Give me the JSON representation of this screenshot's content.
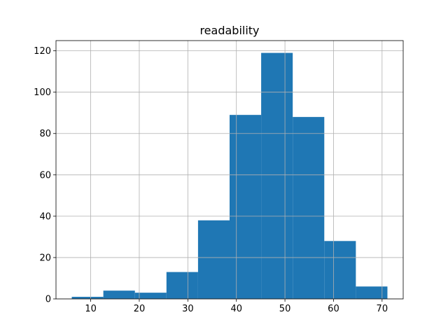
{
  "chart_data": {
    "type": "histogram",
    "title": "readability",
    "bins": [
      6.1,
      12.6,
      19.1,
      25.6,
      32.1,
      38.6,
      45.1,
      51.6,
      58.1,
      64.6,
      71.1
    ],
    "values": [
      1,
      4,
      3,
      13,
      38,
      89,
      119,
      88,
      28,
      6
    ],
    "color": "#1f77b4",
    "xlim": [
      2.85,
      74.35
    ],
    "xticks": [
      10,
      20,
      30,
      40,
      50,
      60,
      70
    ],
    "ylim": [
      0,
      124.95
    ],
    "yticks": [
      0,
      20,
      40,
      60,
      80,
      100,
      120
    ],
    "grid": true
  }
}
